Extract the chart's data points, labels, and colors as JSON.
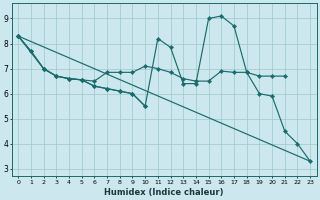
{
  "xlabel": "Humidex (Indice chaleur)",
  "bg_color": "#cce8ee",
  "grid_color": "#9dc8cc",
  "line_color": "#1a6b6b",
  "xlim": [
    -0.5,
    23.5
  ],
  "ylim": [
    2.7,
    9.6
  ],
  "xticks": [
    0,
    1,
    2,
    3,
    4,
    5,
    6,
    7,
    8,
    9,
    10,
    11,
    12,
    13,
    14,
    15,
    16,
    17,
    18,
    19,
    20,
    21,
    22,
    23
  ],
  "yticks": [
    3,
    4,
    5,
    6,
    7,
    8,
    9
  ],
  "line_diagonal": {
    "x": [
      0,
      23
    ],
    "y": [
      8.3,
      3.3
    ]
  },
  "line_flat": {
    "x": [
      0,
      2,
      3,
      4,
      5,
      6,
      7,
      8,
      9,
      10,
      11,
      12,
      13,
      14,
      15,
      16,
      17,
      18,
      19,
      20,
      21
    ],
    "y": [
      8.3,
      7.0,
      6.7,
      6.6,
      6.55,
      6.5,
      6.85,
      6.85,
      6.85,
      7.1,
      7.0,
      6.85,
      6.6,
      6.5,
      6.5,
      6.9,
      6.85,
      6.85,
      6.7,
      6.7,
      6.7
    ]
  },
  "line_peaked": {
    "x": [
      0,
      1,
      2,
      3,
      4,
      5,
      6,
      7,
      8,
      9,
      10,
      11,
      12,
      13,
      14,
      15,
      16,
      17,
      18,
      19,
      20,
      21,
      22,
      23
    ],
    "y": [
      8.3,
      7.7,
      7.0,
      6.7,
      6.6,
      6.55,
      6.3,
      6.2,
      6.1,
      6.0,
      5.5,
      8.2,
      7.85,
      6.4,
      6.4,
      9.0,
      9.1,
      8.7,
      6.85,
      6.0,
      5.9,
      4.5,
      4.0,
      3.3
    ]
  },
  "line_short": {
    "x": [
      0,
      1,
      2,
      3,
      4,
      5,
      6,
      7,
      8,
      9,
      10
    ],
    "y": [
      8.3,
      7.7,
      7.0,
      6.7,
      6.6,
      6.55,
      6.3,
      6.2,
      6.1,
      6.0,
      5.5
    ]
  }
}
